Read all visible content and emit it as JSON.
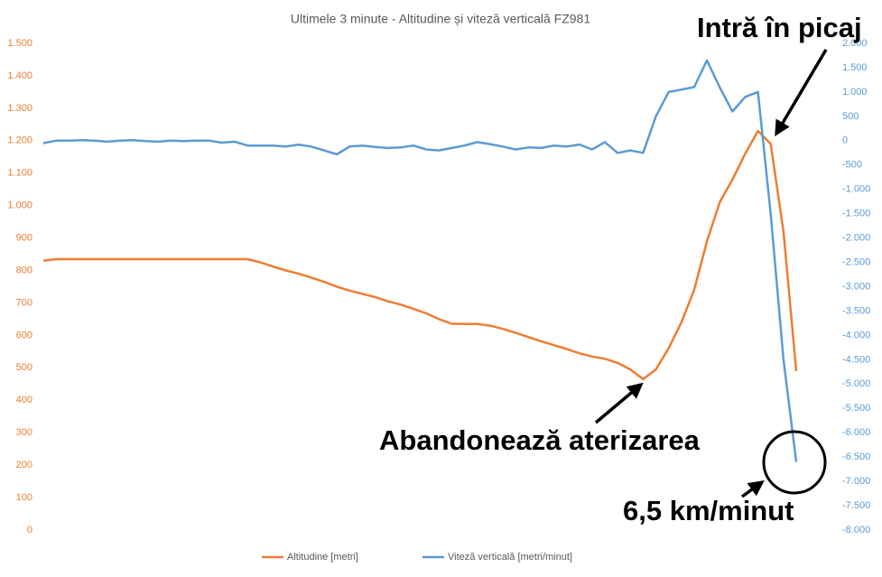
{
  "chart_data": {
    "type": "line",
    "title": "Ultimele 3 minute - Altitudine și viteză verticală FZ981",
    "categories": [
      null,
      null,
      null,
      null,
      null,
      null,
      null,
      null,
      null,
      null,
      null,
      null,
      null,
      null,
      null,
      null,
      null,
      null,
      null,
      null,
      null,
      null,
      null,
      null,
      null,
      null,
      null,
      null,
      null,
      null,
      null,
      null,
      null,
      null,
      null,
      null,
      null,
      null,
      null,
      null,
      null,
      null,
      null,
      null,
      null,
      null,
      null,
      null,
      null,
      null,
      null,
      null,
      null,
      null,
      null,
      null,
      null,
      null,
      null,
      null
    ],
    "series": [
      {
        "name": "Altitudine [metri]",
        "color": "#ed7d31",
        "axis": "y",
        "values": [
          830,
          835,
          835,
          835,
          835,
          835,
          835,
          835,
          835,
          835,
          835,
          835,
          835,
          835,
          835,
          835,
          835,
          825,
          812,
          800,
          790,
          778,
          765,
          750,
          738,
          728,
          718,
          705,
          695,
          682,
          668,
          650,
          636,
          635,
          635,
          630,
          620,
          608,
          595,
          582,
          570,
          558,
          545,
          535,
          528,
          515,
          495,
          465,
          495,
          560,
          640,
          740,
          890,
          1010,
          1080,
          1160,
          1230,
          1190,
          920,
          490
        ]
      },
      {
        "name": "Viteză verticală [metri/minut]",
        "color": "#5b9bd5",
        "axis": "y2",
        "values": [
          -50,
          0,
          0,
          10,
          0,
          -20,
          0,
          10,
          -10,
          -20,
          0,
          -10,
          0,
          0,
          -40,
          -20,
          -100,
          -100,
          -100,
          -120,
          -80,
          -120,
          -200,
          -280,
          -120,
          -100,
          -130,
          -150,
          -140,
          -100,
          -180,
          -200,
          -150,
          -100,
          -30,
          -70,
          -120,
          -180,
          -140,
          -150,
          -100,
          -120,
          -80,
          -180,
          -30,
          -250,
          -200,
          -250,
          500,
          1000,
          1050,
          1100,
          1650,
          1100,
          600,
          900,
          1000,
          -1500,
          -4500,
          -6600
        ]
      }
    ],
    "ylim": [
      0,
      1500
    ],
    "yticks": [
      0,
      100,
      200,
      300,
      400,
      500,
      600,
      700,
      800,
      900,
      {
        "value": 1000,
        "label": "1.000"
      },
      {
        "value": 1100,
        "label": "1.100"
      },
      {
        "value": 1200,
        "label": "1.200"
      },
      {
        "value": 1300,
        "label": "1.300"
      },
      {
        "value": 1400,
        "label": "1.400"
      },
      {
        "value": 1500,
        "label": "1.500"
      }
    ],
    "y2lim": [
      -8000,
      2000
    ],
    "y2ticks": [
      {
        "value": 2000,
        "label": "2.000"
      },
      {
        "value": 1500,
        "label": "1.500"
      },
      {
        "value": 1000,
        "label": "1.000"
      },
      500,
      0,
      -500,
      {
        "value": -1000,
        "label": "-1.000"
      },
      {
        "value": -1500,
        "label": "-1.500"
      },
      {
        "value": -2000,
        "label": "-2.000"
      },
      {
        "value": -2500,
        "label": "-2.500"
      },
      {
        "value": -3000,
        "label": "-3.000"
      },
      {
        "value": -3500,
        "label": "-3.500"
      },
      {
        "value": -4000,
        "label": "-4.000"
      },
      {
        "value": -4500,
        "label": "-4.500"
      },
      {
        "value": -5000,
        "label": "-5.000"
      },
      {
        "value": -5500,
        "label": "-5.500"
      },
      {
        "value": -6000,
        "label": "-6.000"
      },
      {
        "value": -6500,
        "label": "-6.500"
      },
      {
        "value": -7000,
        "label": "-7.000"
      },
      {
        "value": -7500,
        "label": "-7.500"
      },
      {
        "value": -8000,
        "label": "-8.000"
      }
    ],
    "grid": false,
    "annotations": [
      "Intră în picaj",
      "Abandonează aterizarea",
      "6,5 km/minut"
    ]
  }
}
